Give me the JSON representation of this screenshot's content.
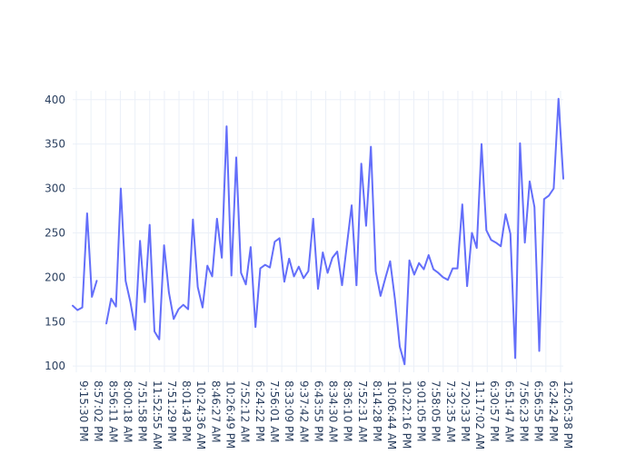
{
  "chart_data": {
    "type": "line",
    "title": "",
    "xlabel": "",
    "ylabel": "",
    "ylim": [
      93,
      410
    ],
    "y_ticks": [
      100,
      150,
      200,
      250,
      300,
      350,
      400
    ],
    "grid": true,
    "line_color": "#636efa",
    "x_tick_labels": [
      "9:15:30 PM",
      "8:57:02 PM",
      "8:56:11 AM",
      "8:00:18 AM",
      "7:51:58 PM",
      "11:52:55 AM",
      "7:51:29 PM",
      "8:01:43 PM",
      "10:24:36 AM",
      "8:46:27 AM",
      "10:26:49 PM",
      "7:52:12 AM",
      "6:24:22 PM",
      "7:56:01 AM",
      "8:33:09 PM",
      "9:37:42 AM",
      "6:43:55 PM",
      "8:34:30 AM",
      "8:36:10 PM",
      "7:52:31 AM",
      "8:14:28 PM",
      "10:06:44 AM",
      "10:22:16 PM",
      "9:01:05 PM",
      "7:58:05 PM",
      "7:32:35 AM",
      "7:20:33 PM",
      "11:17:02 AM",
      "6:30:57 PM",
      "6:51:47 AM",
      "7:56:23 PM",
      "6:56:55 PM",
      "6:24:24 PM",
      "12:05:38 PM"
    ],
    "series": [
      {
        "values": [
          168,
          163,
          166,
          272,
          178,
          196,
          null,
          148,
          176,
          167,
          300,
          196,
          172,
          141,
          241,
          172,
          259,
          139,
          130,
          236,
          183,
          153,
          164,
          169,
          164,
          265,
          189,
          166,
          213,
          201,
          266,
          222,
          370,
          202,
          335,
          205,
          192,
          234,
          144,
          210,
          214,
          211,
          240,
          244,
          195,
          221,
          201,
          212,
          199,
          207,
          266,
          187,
          228,
          205,
          222,
          229,
          191,
          236,
          281,
          191,
          328,
          258,
          347,
          207,
          179,
          199,
          218,
          175,
          122,
          102,
          219,
          203,
          216,
          209,
          225,
          209,
          205,
          200,
          197,
          210,
          210,
          282,
          190,
          250,
          233,
          350,
          253,
          242,
          239,
          235,
          271,
          249,
          109,
          351,
          239,
          308,
          279,
          117,
          288,
          292,
          300,
          401,
          311
        ]
      }
    ]
  }
}
